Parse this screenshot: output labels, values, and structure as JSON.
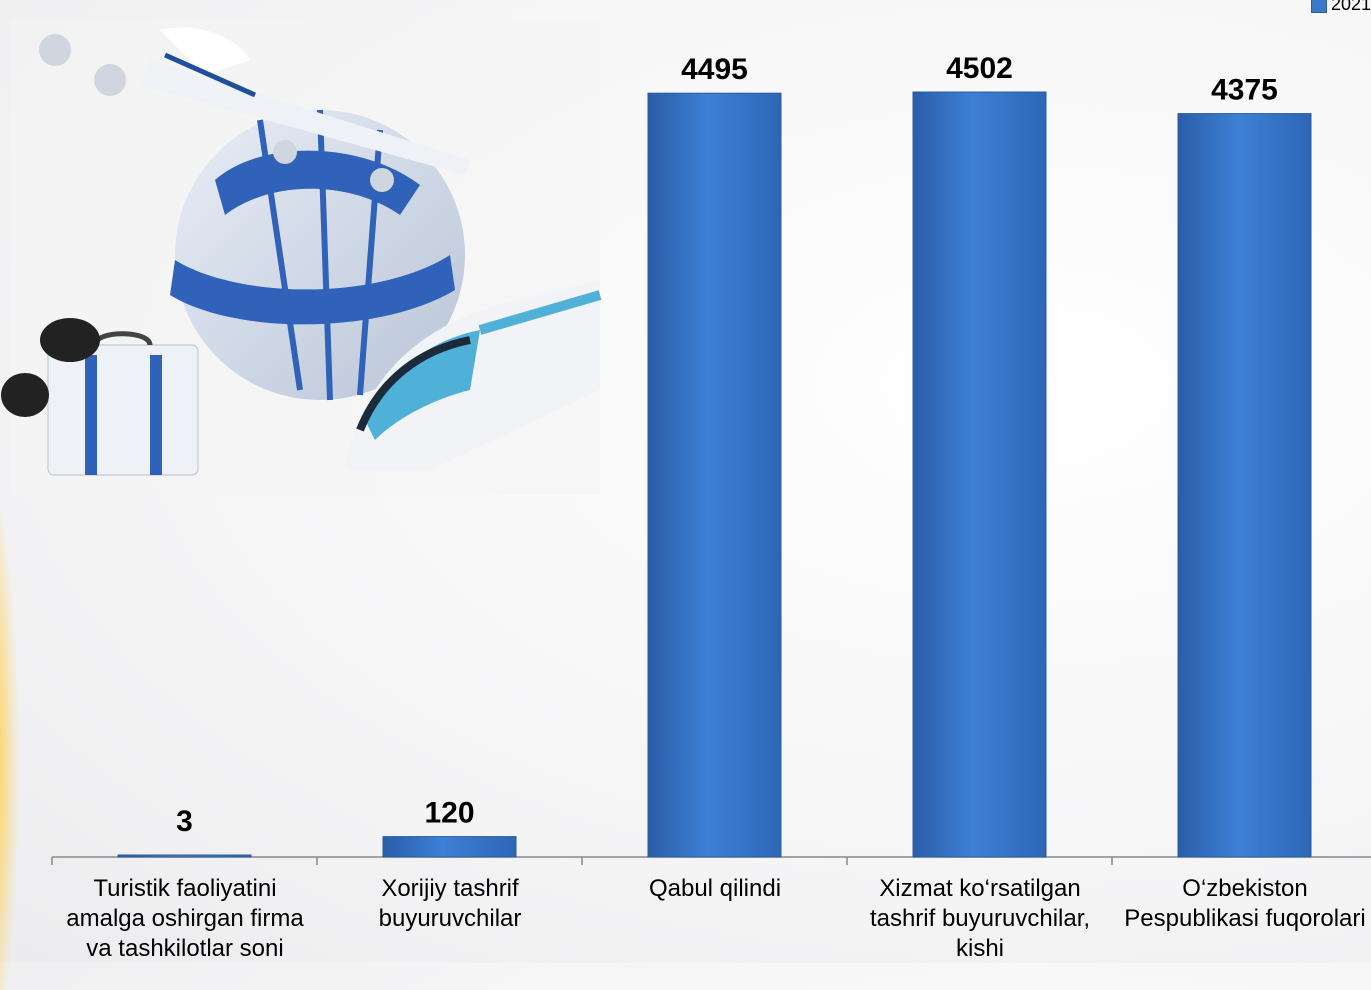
{
  "chart_data": {
    "type": "bar",
    "categories": [
      "Turistik faoliyatini amalga oshirgan firma va tashkilotlar soni",
      "Xorijiy tashrif buyuruvchilar",
      "Qabul qilindi",
      "Xizmat ko‘rsatilgan tashrif buyuruvchilar, kishi",
      "O‘zbekiston Pespublikasi fuqorolari"
    ],
    "series": [
      {
        "name": "2021",
        "values": [
          3,
          120,
          4495,
          4502,
          4375
        ]
      }
    ],
    "data_labels": [
      "3",
      "120",
      "4495",
      "4502",
      "4375"
    ],
    "ylim": [
      0,
      4502
    ],
    "grid": false,
    "legend_position": "top-right",
    "bar_color": "#3a78c9"
  },
  "decoration": {
    "image_icon": "travel-globe-airplane-train-icon",
    "accent_color": "#ffb000"
  }
}
